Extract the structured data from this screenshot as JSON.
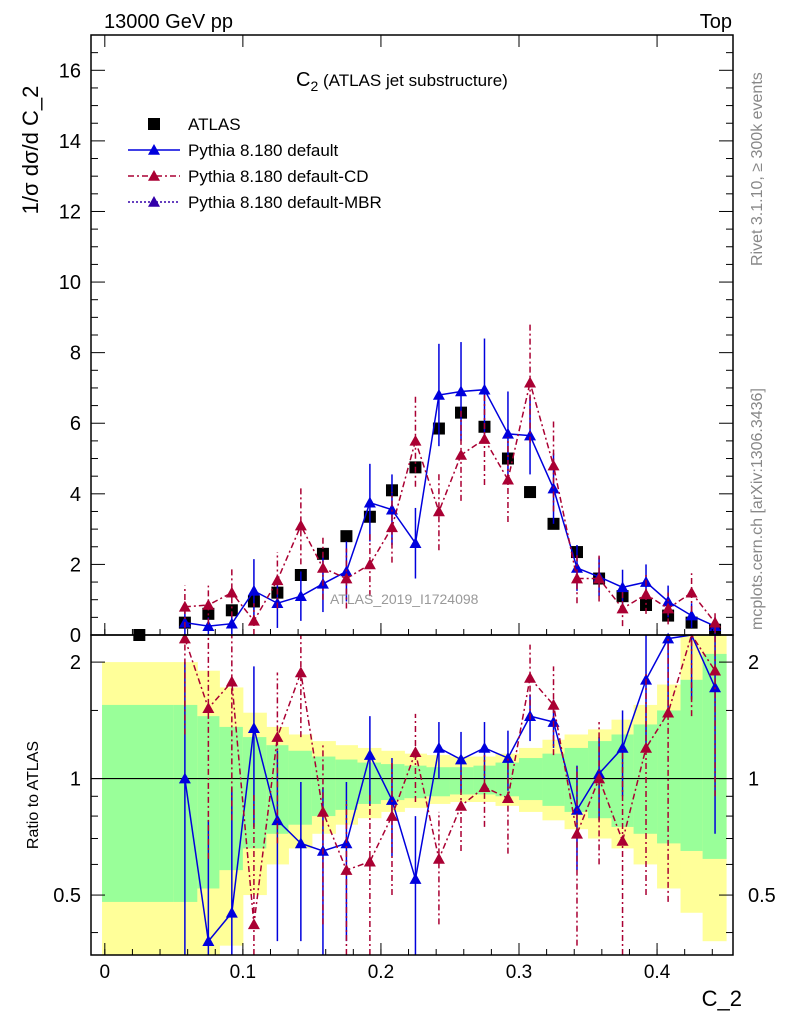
{
  "header": {
    "left": "13000 GeV pp",
    "right": "Top"
  },
  "side_labels": {
    "rivet": "Rivet 3.1.10, ≥ 300k events",
    "mcplots": "mcplots.cern.ch [arXiv:1306.3436]"
  },
  "chart_data": {
    "type": "scatter",
    "title_main": "C",
    "title_sub": "2",
    "title_rest": " (ATLAS jet substructure)",
    "watermark": "ATLAS_2019_I1724098",
    "xlabel": "C_2",
    "ylabel_top": "1/σ dσ/d C_2",
    "ylabel_ratio": "Ratio to ATLAS",
    "xlim": [
      -0.01,
      0.455
    ],
    "ylim_top": [
      0,
      17.0
    ],
    "ylim_ratio": [
      0.35,
      2.35
    ],
    "ratio_log_scale": true,
    "x_ticks": [
      {
        "v": 0,
        "label": "0"
      },
      {
        "v": 0.1,
        "label": "0.1"
      },
      {
        "v": 0.2,
        "label": "0.2"
      },
      {
        "v": 0.3,
        "label": "0.3"
      },
      {
        "v": 0.4,
        "label": "0.4"
      }
    ],
    "y_ticks_top": [
      {
        "v": 0,
        "label": "0"
      },
      {
        "v": 2,
        "label": "2"
      },
      {
        "v": 4,
        "label": "4"
      },
      {
        "v": 6,
        "label": "6"
      },
      {
        "v": 8,
        "label": "8"
      },
      {
        "v": 10,
        "label": "10"
      },
      {
        "v": 12,
        "label": "12"
      },
      {
        "v": 14,
        "label": "14"
      },
      {
        "v": 16,
        "label": "16"
      }
    ],
    "y_ticks_ratio": [
      {
        "v": 0.5,
        "label": "0.5"
      },
      {
        "v": 1,
        "label": "1"
      },
      {
        "v": 2,
        "label": "2"
      }
    ],
    "series": [
      {
        "name": "ATLAS",
        "color": "#000000",
        "marker": "square",
        "x": [
          0.025,
          0.058,
          0.075,
          0.092,
          0.108,
          0.125,
          0.142,
          0.158,
          0.175,
          0.192,
          0.208,
          0.225,
          0.242,
          0.258,
          0.275,
          0.292,
          0.308,
          0.325,
          0.342,
          0.358,
          0.375,
          0.392,
          0.408,
          0.425,
          0.442
        ],
        "y": [
          0.0,
          0.35,
          0.6,
          0.7,
          0.95,
          1.2,
          1.7,
          2.3,
          2.8,
          3.35,
          4.1,
          4.75,
          5.85,
          6.3,
          5.9,
          5.0,
          4.05,
          3.15,
          2.35,
          1.6,
          1.1,
          0.85,
          0.55,
          0.35,
          0.15
        ]
      },
      {
        "name": "Pythia 8.180 default",
        "color": "#0000dd",
        "marker": "triangle",
        "line": "solid",
        "x": [
          0.058,
          0.075,
          0.092,
          0.108,
          0.125,
          0.142,
          0.158,
          0.175,
          0.192,
          0.208,
          0.225,
          0.242,
          0.258,
          0.275,
          0.292,
          0.308,
          0.325,
          0.342,
          0.358,
          0.375,
          0.392,
          0.408,
          0.425,
          0.442
        ],
        "y": [
          0.35,
          0.25,
          0.32,
          1.25,
          0.9,
          1.1,
          1.45,
          1.8,
          3.75,
          3.55,
          2.6,
          6.8,
          6.9,
          6.95,
          5.7,
          5.65,
          4.15,
          1.9,
          1.65,
          1.35,
          1.5,
          0.95,
          0.55,
          0.25
        ],
        "err": [
          0.35,
          0.25,
          0.3,
          0.9,
          0.7,
          0.7,
          0.8,
          0.85,
          1.1,
          1.0,
          1.0,
          1.45,
          1.4,
          1.45,
          1.2,
          1.1,
          1.0,
          0.65,
          0.55,
          0.5,
          0.5,
          0.45,
          0.35,
          0.25
        ],
        "ratio": [
          1.0,
          0.38,
          0.45,
          1.35,
          0.78,
          0.68,
          0.65,
          0.68,
          1.15,
          0.88,
          0.55,
          1.2,
          1.12,
          1.2,
          1.13,
          1.45,
          1.4,
          0.83,
          1.03,
          1.2,
          1.8,
          2.3,
          2.5,
          1.72
        ],
        "ratio_err": [
          1.0,
          0.4,
          0.5,
          0.6,
          0.4,
          0.3,
          0.3,
          0.3,
          0.3,
          0.25,
          0.25,
          0.2,
          0.2,
          0.2,
          0.2,
          0.2,
          0.2,
          0.25,
          0.25,
          0.3,
          0.6,
          0.8,
          0.9,
          1.0
        ]
      },
      {
        "name": "Pythia 8.180 default-CD",
        "color": "#aa0033",
        "marker": "triangle",
        "line": "dashdot",
        "x": [
          0.058,
          0.075,
          0.092,
          0.108,
          0.125,
          0.142,
          0.158,
          0.175,
          0.192,
          0.208,
          0.225,
          0.242,
          0.258,
          0.275,
          0.292,
          0.308,
          0.325,
          0.342,
          0.358,
          0.375,
          0.392,
          0.408,
          0.425,
          0.442
        ],
        "y": [
          0.8,
          0.85,
          1.2,
          0.4,
          1.55,
          3.1,
          1.9,
          1.6,
          2.0,
          3.05,
          5.5,
          3.5,
          5.1,
          5.55,
          4.4,
          7.15,
          4.8,
          1.6,
          1.6,
          0.75,
          1.15,
          0.75,
          1.2,
          0.35
        ],
        "err": [
          0.6,
          0.55,
          0.7,
          0.5,
          0.8,
          1.1,
          0.9,
          0.85,
          0.9,
          1.0,
          1.3,
          1.1,
          1.3,
          1.3,
          1.2,
          1.7,
          1.3,
          0.7,
          0.65,
          0.5,
          0.55,
          0.45,
          0.55,
          0.3
        ],
        "ratio": [
          2.3,
          1.52,
          1.78,
          0.42,
          1.28,
          1.88,
          0.82,
          0.58,
          0.61,
          0.8,
          1.17,
          0.62,
          0.85,
          0.95,
          0.89,
          1.82,
          1.55,
          0.72,
          1.0,
          0.69,
          1.2,
          1.48,
          2.45,
          1.9
        ],
        "ratio_err": [
          1.0,
          0.9,
          1.0,
          0.5,
          0.6,
          0.6,
          0.4,
          0.3,
          0.3,
          0.3,
          0.3,
          0.2,
          0.2,
          0.2,
          0.25,
          0.4,
          0.4,
          0.35,
          0.4,
          0.5,
          0.7,
          1.0,
          1.0,
          1.0
        ]
      },
      {
        "name": "Pythia 8.180 default-MBR",
        "color": "#3300aa",
        "marker": "triangle",
        "line": "dotted",
        "x": [],
        "y": []
      }
    ],
    "uncertainty_bands": {
      "edges": [
        -0.002,
        0.05,
        0.067,
        0.083,
        0.1,
        0.117,
        0.133,
        0.15,
        0.167,
        0.183,
        0.2,
        0.217,
        0.233,
        0.25,
        0.267,
        0.283,
        0.3,
        0.317,
        0.333,
        0.35,
        0.367,
        0.383,
        0.4,
        0.417,
        0.433,
        0.45
      ],
      "yellow_lo": [
        0.35,
        0.35,
        0.35,
        0.37,
        0.5,
        0.6,
        0.66,
        0.72,
        0.76,
        0.79,
        0.82,
        0.84,
        0.86,
        0.87,
        0.87,
        0.85,
        0.82,
        0.78,
        0.74,
        0.7,
        0.66,
        0.6,
        0.52,
        0.45,
        0.38
      ],
      "yellow_hi": [
        2.0,
        2.0,
        1.9,
        1.72,
        1.48,
        1.36,
        1.3,
        1.25,
        1.22,
        1.2,
        1.18,
        1.16,
        1.15,
        1.14,
        1.14,
        1.16,
        1.2,
        1.26,
        1.3,
        1.34,
        1.42,
        1.55,
        1.75,
        2.35,
        2.35
      ],
      "green_lo": [
        0.48,
        0.48,
        0.52,
        0.58,
        0.66,
        0.72,
        0.76,
        0.8,
        0.83,
        0.86,
        0.88,
        0.89,
        0.9,
        0.91,
        0.91,
        0.9,
        0.88,
        0.85,
        0.82,
        0.79,
        0.75,
        0.72,
        0.68,
        0.65,
        0.62
      ],
      "green_hi": [
        1.55,
        1.55,
        1.45,
        1.36,
        1.28,
        1.22,
        1.18,
        1.14,
        1.12,
        1.1,
        1.09,
        1.08,
        1.07,
        1.07,
        1.08,
        1.1,
        1.13,
        1.16,
        1.2,
        1.25,
        1.3,
        1.38,
        1.5,
        1.8,
        2.1
      ],
      "yellow_color": "#ffff99",
      "green_color": "#99ff99"
    },
    "legend_position": "upper-left"
  }
}
